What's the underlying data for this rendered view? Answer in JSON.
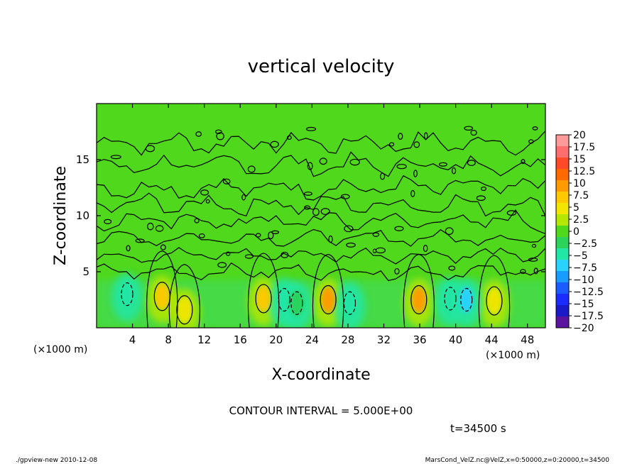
{
  "chart_data": {
    "type": "heatmap",
    "title": "vertical velocity",
    "xlabel": "X-coordinate",
    "ylabel": "Z-coordinate",
    "x_unit": "(×1000 m)",
    "z_unit": "(×1000 m)",
    "xlim": [
      0,
      50
    ],
    "ylim": [
      0,
      20
    ],
    "x_ticks": [
      4,
      8,
      12,
      16,
      20,
      24,
      28,
      32,
      36,
      40,
      44,
      48
    ],
    "y_ticks": [
      5,
      10,
      15
    ],
    "contour_interval_text": "CONTOUR INTERVAL = 5.000E+00",
    "time_text": "t=34500 s",
    "colorbar": {
      "levels": [
        20,
        17.5,
        15,
        12.5,
        10,
        7.5,
        5,
        2.5,
        0,
        -2.5,
        -5,
        -7.5,
        -10,
        -12.5,
        -15,
        -17.5,
        -20
      ],
      "labels": [
        "20",
        "17.5",
        "15",
        "12.5",
        "10",
        "7.5",
        "5",
        "2.5",
        "0",
        "−2.5",
        "−5",
        "−7.5",
        "−10",
        "−12.5",
        "−15",
        "−17.5",
        "−20"
      ],
      "colors": [
        "#ff9a9a",
        "#ff6e6e",
        "#ff4a2a",
        "#ff6a00",
        "#ff9b00",
        "#ffc800",
        "#f2e600",
        "#b4e600",
        "#4fd81c",
        "#2cd25a",
        "#22e6a6",
        "#2ad2ff",
        "#189cff",
        "#1a5cff",
        "#1a2cff",
        "#1a1ac8",
        "#5a14a0"
      ]
    },
    "updraft_cells": [
      {
        "x": 7.3,
        "z": 2.8,
        "value": 7.5
      },
      {
        "x": 9.8,
        "z": 1.6,
        "value": 5
      },
      {
        "x": 18.6,
        "z": 2.6,
        "value": 7.5
      },
      {
        "x": 25.8,
        "z": 2.5,
        "value": 10
      },
      {
        "x": 35.9,
        "z": 2.5,
        "value": 10
      },
      {
        "x": 44.3,
        "z": 2.4,
        "value": 5
      }
    ],
    "downdraft_cells": [
      {
        "x": 3.4,
        "z": 3.0,
        "value": -5
      },
      {
        "x": 20.9,
        "z": 2.5,
        "value": -5
      },
      {
        "x": 22.3,
        "z": 2.2,
        "value": -2.5
      },
      {
        "x": 28.2,
        "z": 2.2,
        "value": -5
      },
      {
        "x": 39.4,
        "z": 2.6,
        "value": -5
      },
      {
        "x": 41.2,
        "z": 2.5,
        "value": -7.5
      }
    ]
  },
  "footer": {
    "left": "./gpview-new   2010-12-08",
    "right": "MarsCond_VelZ.nc@VelZ,x=0:50000,z=0:20000,t=34500"
  }
}
